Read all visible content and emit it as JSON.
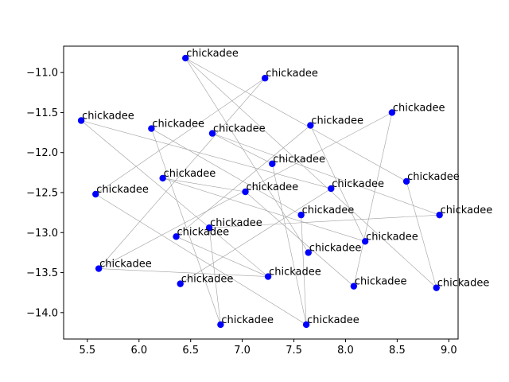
{
  "chart_data": {
    "type": "scatter",
    "title": "",
    "xlabel": "",
    "ylabel": "",
    "xlim": [
      5.27,
      9.09
    ],
    "ylim": [
      -14.33,
      -10.67
    ],
    "x_ticks": [
      5.5,
      6.0,
      6.5,
      7.0,
      7.5,
      8.0,
      8.5,
      9.0
    ],
    "x_tick_labels": [
      "5.5",
      "6.0",
      "6.5",
      "7.0",
      "7.5",
      "8.0",
      "8.5",
      "9.0"
    ],
    "y_ticks": [
      -11.0,
      -11.5,
      -12.0,
      -12.5,
      -13.0,
      -13.5,
      -14.0
    ],
    "y_tick_labels": [
      "−11.0",
      "−11.5",
      "−12.0",
      "−12.5",
      "−13.0",
      "−13.5",
      "−14.0"
    ],
    "grid": false,
    "marker_color": "#0000ff",
    "line_color": "#a0a0a0",
    "points": [
      {
        "x": 6.45,
        "y": -10.82,
        "label": "chickadee"
      },
      {
        "x": 7.22,
        "y": -11.07,
        "label": "chickadee"
      },
      {
        "x": 5.44,
        "y": -11.6,
        "label": "chickadee"
      },
      {
        "x": 8.45,
        "y": -11.5,
        "label": "chickadee"
      },
      {
        "x": 6.12,
        "y": -11.7,
        "label": "chickadee"
      },
      {
        "x": 7.66,
        "y": -11.66,
        "label": "chickadee"
      },
      {
        "x": 6.71,
        "y": -11.76,
        "label": "chickadee"
      },
      {
        "x": 7.29,
        "y": -12.14,
        "label": "chickadee"
      },
      {
        "x": 6.23,
        "y": -12.32,
        "label": "chickadee"
      },
      {
        "x": 8.59,
        "y": -12.36,
        "label": "chickadee"
      },
      {
        "x": 5.58,
        "y": -12.52,
        "label": "chickadee"
      },
      {
        "x": 7.03,
        "y": -12.49,
        "label": "chickadee"
      },
      {
        "x": 7.86,
        "y": -12.45,
        "label": "chickadee"
      },
      {
        "x": 7.57,
        "y": -12.78,
        "label": "chickadee"
      },
      {
        "x": 8.91,
        "y": -12.78,
        "label": "chickadee"
      },
      {
        "x": 6.68,
        "y": -12.94,
        "label": "chickadee"
      },
      {
        "x": 6.36,
        "y": -13.05,
        "label": "chickadee"
      },
      {
        "x": 8.19,
        "y": -13.11,
        "label": "chickadee"
      },
      {
        "x": 7.64,
        "y": -13.25,
        "label": "chickadee"
      },
      {
        "x": 5.61,
        "y": -13.45,
        "label": "chickadee"
      },
      {
        "x": 7.25,
        "y": -13.55,
        "label": "chickadee"
      },
      {
        "x": 6.4,
        "y": -13.64,
        "label": "chickadee"
      },
      {
        "x": 8.08,
        "y": -13.67,
        "label": "chickadee"
      },
      {
        "x": 8.88,
        "y": -13.69,
        "label": "chickadee"
      },
      {
        "x": 6.79,
        "y": -14.15,
        "label": "chickadee"
      },
      {
        "x": 7.62,
        "y": -14.15,
        "label": "chickadee"
      }
    ],
    "segments": [
      [
        0,
        18
      ],
      [
        0,
        23
      ],
      [
        1,
        10
      ],
      [
        1,
        19
      ],
      [
        2,
        12
      ],
      [
        2,
        20
      ],
      [
        3,
        19
      ],
      [
        3,
        22
      ],
      [
        4,
        13
      ],
      [
        4,
        24
      ],
      [
        5,
        16
      ],
      [
        5,
        17
      ],
      [
        6,
        7
      ],
      [
        6,
        14
      ],
      [
        7,
        25
      ],
      [
        8,
        11
      ],
      [
        8,
        17
      ],
      [
        9,
        23
      ],
      [
        11,
        22
      ],
      [
        12,
        21
      ],
      [
        13,
        25
      ],
      [
        14,
        15
      ],
      [
        15,
        24
      ],
      [
        16,
        20
      ],
      [
        19,
        20
      ],
      [
        10,
        25
      ],
      [
        0,
        9
      ]
    ]
  }
}
